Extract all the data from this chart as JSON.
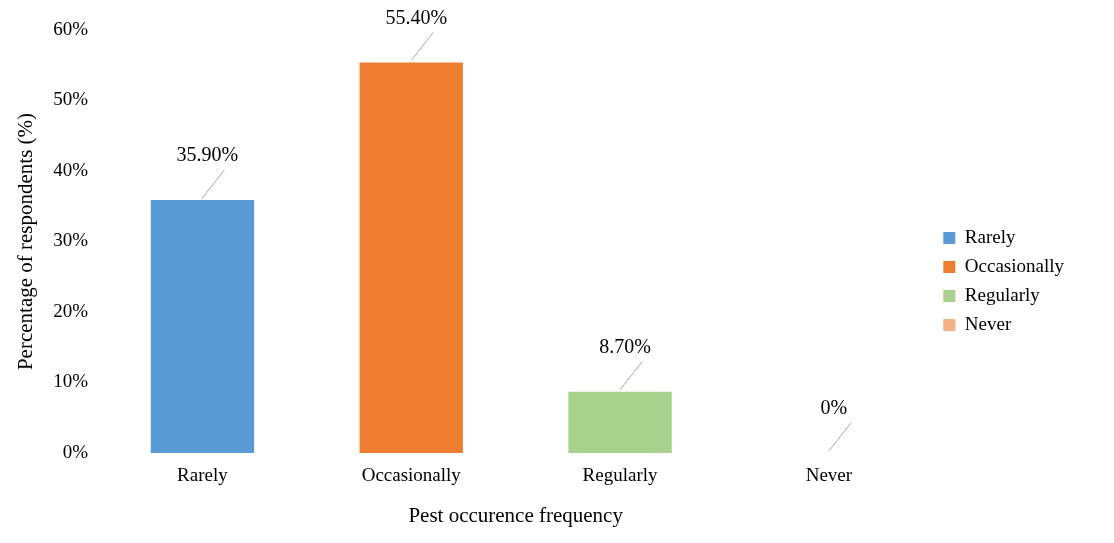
{
  "chart_data": {
    "type": "bar",
    "xlabel": "Pest occurence frequency",
    "ylabel": "Percentage of respondents (%)",
    "categories": [
      "Rarely",
      "Occasionally",
      "Regularly",
      "Never"
    ],
    "series": [
      {
        "name": "Rarely",
        "color": "#5b9bd5",
        "values": [
          35.9,
          null,
          null,
          null
        ],
        "value_labels": [
          "35.90%",
          null,
          null,
          null
        ]
      },
      {
        "name": "Occasionally",
        "color": "#ed7d31",
        "values": [
          null,
          55.4,
          null,
          null
        ],
        "value_labels": [
          null,
          "55.40%",
          null,
          null
        ]
      },
      {
        "name": "Regularly",
        "color": "#a9d18e",
        "values": [
          null,
          null,
          8.7,
          null
        ],
        "value_labels": [
          null,
          null,
          "8.70%",
          null
        ]
      },
      {
        "name": "Never",
        "color": "#f4b183",
        "values": [
          null,
          null,
          null,
          0
        ],
        "value_labels": [
          null,
          null,
          null,
          "0%"
        ]
      }
    ],
    "ylim": [
      0,
      60
    ],
    "yticks": [
      {
        "value": 0,
        "label": "0%"
      },
      {
        "value": 10,
        "label": "10%"
      },
      {
        "value": 20,
        "label": "20%"
      },
      {
        "value": 30,
        "label": "30%"
      },
      {
        "value": 40,
        "label": "40%"
      },
      {
        "value": 50,
        "label": "50%"
      },
      {
        "value": 60,
        "label": "60%"
      }
    ],
    "grid": false,
    "legend": "right"
  }
}
